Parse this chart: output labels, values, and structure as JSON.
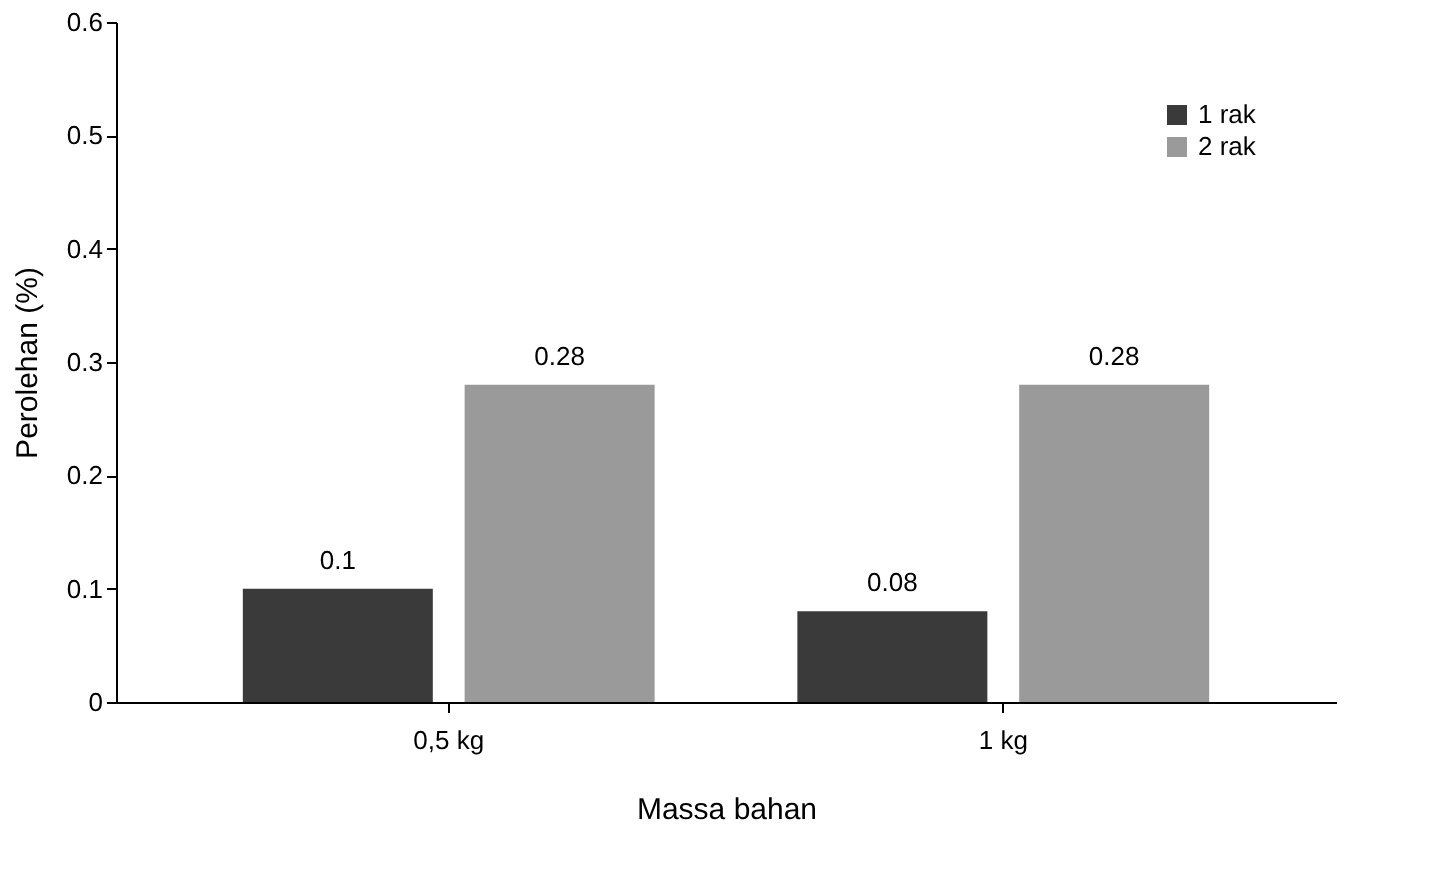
{
  "chart_data": {
    "type": "bar",
    "xlabel": "Massa bahan",
    "ylabel": "Perolehan (%)",
    "categories": [
      "0,5 kg",
      "1 kg"
    ],
    "series": [
      {
        "name": "1 rak",
        "color": "#3a3a3a",
        "values": [
          0.1,
          0.08
        ]
      },
      {
        "name": "2 rak",
        "color": "#9a9a9a",
        "values": [
          0.28,
          0.28
        ]
      }
    ],
    "ylim": [
      0,
      0.6
    ],
    "yticks": [
      0,
      0.1,
      0.2,
      0.3,
      0.4,
      0.5,
      0.6
    ],
    "grid": false,
    "legend": "top right",
    "data_labels": true
  }
}
